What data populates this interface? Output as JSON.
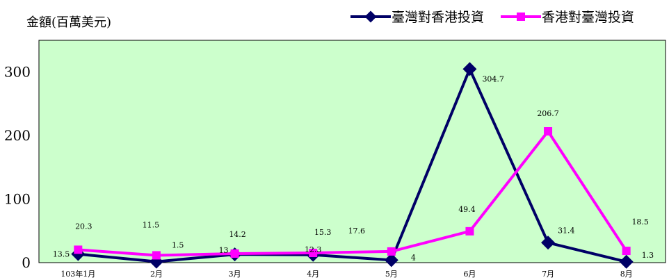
{
  "unit_label": "金額(百萬美元)",
  "chart_data": {
    "type": "line",
    "categories": [
      "103年1月",
      "2月",
      "3月",
      "4月",
      "5月",
      "6月",
      "7月",
      "8月"
    ],
    "series": [
      {
        "name": "臺灣對香港投資",
        "color": "#000066",
        "marker": "diamond",
        "values": [
          13.5,
          1.5,
          13,
          12.3,
          4,
          304.7,
          31.4,
          1.3
        ],
        "labels": [
          "13.5",
          "1.5",
          "13",
          "12.3",
          "4",
          "304.7",
          "31.4",
          "1.3"
        ]
      },
      {
        "name": "香港對臺灣投資",
        "color": "#FF00FF",
        "marker": "square",
        "values": [
          20.3,
          11.5,
          14.2,
          15.3,
          17.6,
          49.4,
          206.7,
          18.5
        ],
        "labels": [
          "20.3",
          "11.5",
          "14.2",
          "15.3",
          "17.6",
          "49.4",
          "206.7",
          "18.5"
        ]
      }
    ],
    "y_ticks": [
      "0",
      "100",
      "200",
      "300"
    ],
    "ylim": [
      0,
      350
    ],
    "plot_background": "#CCFFCC",
    "grid": false,
    "legend_position": "top-right"
  }
}
